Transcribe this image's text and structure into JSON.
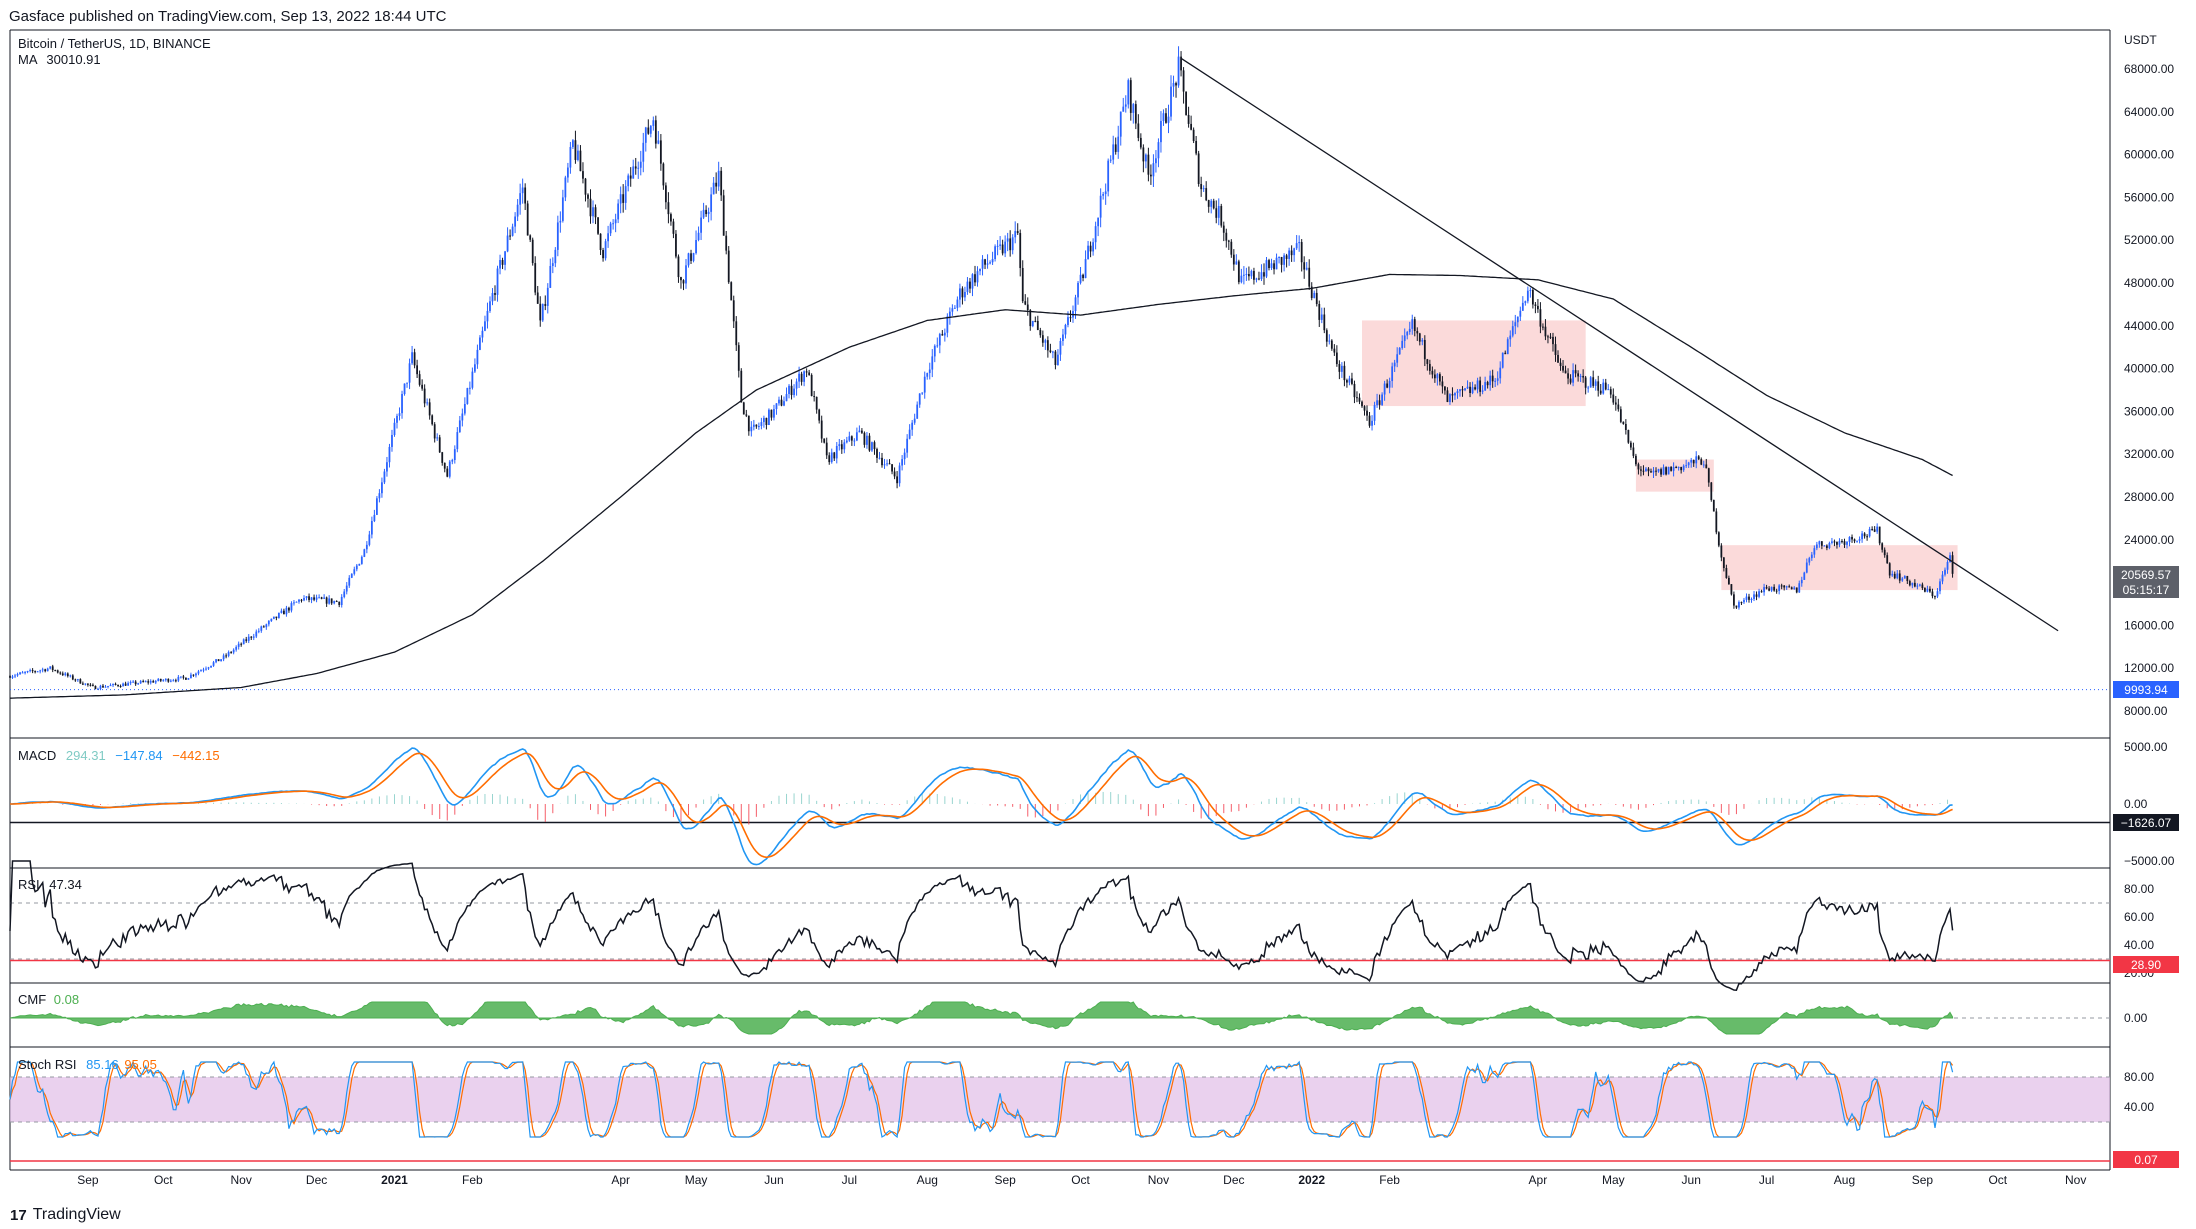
{
  "header": {
    "publisher": "Gasface published on TradingView.com, Sep 13, 2022 18:44 UTC"
  },
  "main_pane": {
    "symbol": "Bitcoin / TetherUS, 1D, BINANCE",
    "ma_label": "MA",
    "ma_value": "30010.91",
    "currency": "USDT",
    "last_price": "20569.57",
    "countdown": "05:15:17",
    "level_price": "9993.94"
  },
  "macd": {
    "label": "MACD",
    "v1": "294.31",
    "v2": "−147.84",
    "v3": "−442.15",
    "marker": "−1626.07"
  },
  "rsi": {
    "label": "RSI",
    "value": "47.34",
    "marker": "28.90"
  },
  "cmf": {
    "label": "CMF",
    "value": "0.08"
  },
  "stoch": {
    "label": "Stoch RSI",
    "k": "85.16",
    "d": "95.05",
    "marker": "0.07"
  },
  "footer": {
    "brand": "TradingView"
  },
  "colors": {
    "up": "#2962ff",
    "down": "#131722",
    "macd": "#2196f3",
    "signal": "#ff6d00",
    "cmf": "#4caf50",
    "marker": "#f23645",
    "stoch_fill": "#e1bee7"
  },
  "chart_data": {
    "type": "candlestick",
    "title": "Bitcoin / TetherUS, 1D, BINANCE",
    "ylabel": "USDT",
    "ylim": [
      6000,
      70000
    ],
    "y_ticks": [
      "68000.00",
      "64000.00",
      "60000.00",
      "56000.00",
      "52000.00",
      "48000.00",
      "44000.00",
      "40000.00",
      "36000.00",
      "32000.00",
      "28000.00",
      "24000.00",
      "16000.00",
      "12000.00",
      "8000.00"
    ],
    "x_ticks": [
      "Sep",
      "Oct",
      "Nov",
      "Dec",
      "2021",
      "Feb",
      "Apr",
      "May",
      "Jun",
      "Jul",
      "Aug",
      "Sep",
      "Oct",
      "Nov",
      "Dec",
      "2022",
      "Feb",
      "Apr",
      "May",
      "Jun",
      "Jul",
      "Aug",
      "Sep",
      "Oct",
      "Nov"
    ],
    "x_tick_dates": [
      "2020-09-01",
      "2020-10-01",
      "2020-11-01",
      "2020-12-01",
      "2021-01-01",
      "2021-02-01",
      "2021-04-01",
      "2021-05-01",
      "2021-06-01",
      "2021-07-01",
      "2021-08-01",
      "2021-09-01",
      "2021-10-01",
      "2021-11-01",
      "2021-12-01",
      "2022-01-01",
      "2022-02-01",
      "2022-04-01",
      "2022-05-01",
      "2022-06-01",
      "2022-07-01",
      "2022-08-01",
      "2022-09-01",
      "2022-10-01",
      "2022-11-01"
    ],
    "price_keypoints": [
      [
        "2020-08-01",
        11300
      ],
      [
        "2020-08-17",
        12000
      ],
      [
        "2020-09-03",
        10200
      ],
      [
        "2020-09-24",
        10700
      ],
      [
        "2020-10-10",
        11100
      ],
      [
        "2020-10-25",
        13000
      ],
      [
        "2020-11-05",
        15000
      ],
      [
        "2020-11-25",
        18500
      ],
      [
        "2020-12-10",
        18200
      ],
      [
        "2020-12-20",
        23000
      ],
      [
        "2021-01-08",
        41000
      ],
      [
        "2021-01-22",
        30000
      ],
      [
        "2021-02-08",
        46000
      ],
      [
        "2021-02-21",
        57000
      ],
      [
        "2021-02-28",
        44000
      ],
      [
        "2021-03-13",
        61000
      ],
      [
        "2021-03-25",
        51000
      ],
      [
        "2021-04-14",
        63500
      ],
      [
        "2021-04-25",
        48000
      ],
      [
        "2021-05-10",
        58000
      ],
      [
        "2021-05-19",
        37000
      ],
      [
        "2021-05-23",
        34000
      ],
      [
        "2021-06-01",
        36000
      ],
      [
        "2021-06-14",
        40000
      ],
      [
        "2021-06-22",
        31500
      ],
      [
        "2021-07-05",
        34000
      ],
      [
        "2021-07-20",
        29800
      ],
      [
        "2021-08-01",
        40000
      ],
      [
        "2021-08-14",
        47000
      ],
      [
        "2021-08-23",
        49500
      ],
      [
        "2021-09-06",
        52500
      ],
      [
        "2021-09-08",
        46000
      ],
      [
        "2021-09-21",
        40500
      ],
      [
        "2021-10-01",
        48000
      ],
      [
        "2021-10-20",
        66000
      ],
      [
        "2021-10-28",
        58000
      ],
      [
        "2021-11-09",
        68000
      ],
      [
        "2021-11-18",
        57000
      ],
      [
        "2021-11-26",
        54000
      ],
      [
        "2021-12-04",
        48000
      ],
      [
        "2021-12-27",
        51000
      ],
      [
        "2022-01-10",
        41000
      ],
      [
        "2022-01-24",
        35000
      ],
      [
        "2022-02-10",
        44000
      ],
      [
        "2022-02-24",
        37000
      ],
      [
        "2022-03-15",
        39000
      ],
      [
        "2022-03-28",
        47500
      ],
      [
        "2022-04-11",
        39500
      ],
      [
        "2022-04-30",
        38000
      ],
      [
        "2022-05-10",
        31000
      ],
      [
        "2022-05-15",
        30000
      ],
      [
        "2022-06-06",
        31500
      ],
      [
        "2022-06-13",
        22500
      ],
      [
        "2022-06-18",
        17800
      ],
      [
        "2022-07-01",
        19500
      ],
      [
        "2022-07-13",
        19300
      ],
      [
        "2022-07-20",
        23500
      ],
      [
        "2022-07-30",
        23800
      ],
      [
        "2022-08-14",
        24800
      ],
      [
        "2022-08-19",
        21000
      ],
      [
        "2022-09-06",
        18800
      ],
      [
        "2022-09-12",
        22400
      ],
      [
        "2022-09-13",
        20569.57
      ]
    ],
    "ma200_keypoints": [
      [
        "2020-08-01",
        9200
      ],
      [
        "2020-09-15",
        9500
      ],
      [
        "2020-11-01",
        10200
      ],
      [
        "2020-12-01",
        11500
      ],
      [
        "2021-01-01",
        13500
      ],
      [
        "2021-02-01",
        17000
      ],
      [
        "2021-03-01",
        22000
      ],
      [
        "2021-04-01",
        28000
      ],
      [
        "2021-05-01",
        34000
      ],
      [
        "2021-05-25",
        38000
      ],
      [
        "2021-07-01",
        42000
      ],
      [
        "2021-08-01",
        44500
      ],
      [
        "2021-09-01",
        45500
      ],
      [
        "2021-10-01",
        45000
      ],
      [
        "2021-11-01",
        46000
      ],
      [
        "2021-12-01",
        46800
      ],
      [
        "2022-01-01",
        47500
      ],
      [
        "2022-02-01",
        48800
      ],
      [
        "2022-03-01",
        48700
      ],
      [
        "2022-04-01",
        48300
      ],
      [
        "2022-05-01",
        46500
      ],
      [
        "2022-06-01",
        42000
      ],
      [
        "2022-07-01",
        37500
      ],
      [
        "2022-08-01",
        34000
      ],
      [
        "2022-09-01",
        31500
      ],
      [
        "2022-09-13",
        30010.91
      ]
    ],
    "trendline": [
      [
        "2021-11-10",
        69000
      ],
      [
        "2022-10-25",
        15500
      ]
    ],
    "zones": [
      {
        "x0": "2022-01-21",
        "x1": "2022-04-20",
        "y0": 36500,
        "y1": 44500
      },
      {
        "x0": "2022-05-10",
        "x1": "2022-06-10",
        "y0": 28500,
        "y1": 31500
      },
      {
        "x0": "2022-06-13",
        "x1": "2022-09-15",
        "y0": 19300,
        "y1": 23500
      }
    ],
    "level_line": 9993.94,
    "macd_ticks": [
      "5000.00",
      "0.00",
      "−5000.00"
    ],
    "rsi_ticks": [
      "80.00",
      "60.00",
      "40.00",
      "20.00"
    ],
    "cmf_ticks": [
      "0.00"
    ],
    "stoch_ticks": [
      "80.00",
      "40.00"
    ]
  }
}
